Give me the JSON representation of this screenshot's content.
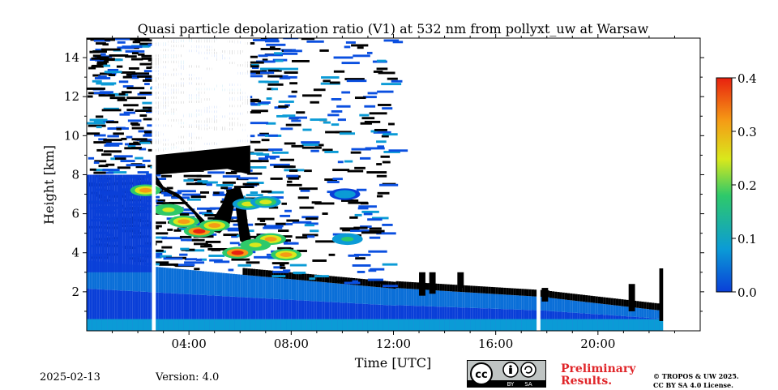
{
  "chart_data": {
    "type": "heatmap",
    "title": "Quasi particle depolarization ratio (V1) at 532 nm from pollyxt_uw at Warsaw",
    "xlabel": "Time [UTC]",
    "ylabel": "Height [km]",
    "xlim": [
      0,
      24
    ],
    "ylim": [
      0,
      15
    ],
    "x_ticks": [
      {
        "value": 4,
        "label": "04:00"
      },
      {
        "value": 8,
        "label": "08:00"
      },
      {
        "value": 12,
        "label": "12:00"
      },
      {
        "value": 16,
        "label": "16:00"
      },
      {
        "value": 20,
        "label": "20:00"
      }
    ],
    "y_ticks": [
      {
        "value": 2,
        "label": "2"
      },
      {
        "value": 4,
        "label": "4"
      },
      {
        "value": 6,
        "label": "6"
      },
      {
        "value": 8,
        "label": "8"
      },
      {
        "value": 10,
        "label": "10"
      },
      {
        "value": 12,
        "label": "12"
      },
      {
        "value": 14,
        "label": "14"
      }
    ],
    "colorbar": {
      "range": [
        0.0,
        0.4
      ],
      "ticks": [
        "0.0",
        "0.1",
        "0.2",
        "0.3",
        "0.4"
      ],
      "colors": [
        "#0a3fd8",
        "#0b9bd6",
        "#2ec96a",
        "#d9e81c",
        "#f59b15",
        "#e8210f"
      ]
    },
    "no_signal_gaps_hours": [
      [
        2.55,
        2.7
      ],
      [
        17.6,
        17.75
      ]
    ],
    "features": [
      {
        "name": "boundary-layer",
        "start": 0,
        "end": 22.5,
        "top_km": 2.0,
        "value": 0.02
      },
      {
        "name": "aerosol-layer-high",
        "start": 2,
        "end": 8,
        "bottom_km": 3.7,
        "top_km": 7.5,
        "value": 0.35
      },
      {
        "name": "cloud-blocked",
        "start": 2.7,
        "end": 6.3,
        "bottom_km": 4.0,
        "top_km": 8.0
      },
      {
        "name": "upper-noise",
        "start": 0,
        "end": 12,
        "bottom_km": 8,
        "top_km": 15,
        "value": 0.03
      }
    ]
  },
  "footer": {
    "date": "2025-02-13",
    "version": "Version: 4.0",
    "preliminary_line1": "Preliminary",
    "preliminary_line2": "Results.",
    "copyright_line1": "© TROPOS & UW 2025.",
    "copyright_line2": "CC BY SA 4.0 License."
  },
  "license_badge": {
    "cc": "cc",
    "by": "BY",
    "sa": "SA"
  }
}
